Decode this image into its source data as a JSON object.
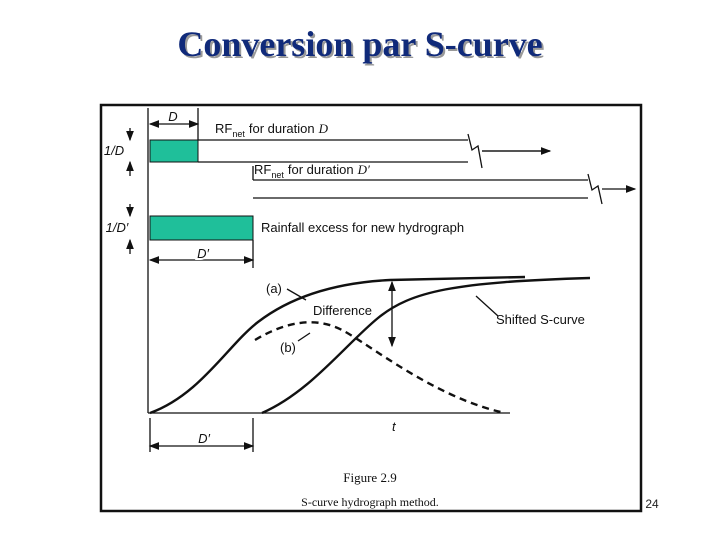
{
  "slide": {
    "title": "Conversion par S-curve",
    "page_number": "24"
  },
  "figure": {
    "width_d": "D",
    "scale_d": "1/D",
    "rf_d": {
      "rf": "RF",
      "sub": "net",
      "text": "for duration",
      "var": "D"
    },
    "rf_dp": {
      "rf": "RF",
      "sub": "net",
      "text": "for duration",
      "var": "D′"
    },
    "scale_dp": "1/D′",
    "excess": "Rainfall excess for new hydrograph",
    "width_dp": "D′",
    "curve_a": "(a)",
    "difference": "Difference",
    "curve_b": "(b)",
    "shifted": "Shifted S-curve",
    "t_axis": "t",
    "lag": "D′",
    "caption": {
      "number": "Figure 2.9",
      "text": "S-curve hydrograph method."
    }
  }
}
